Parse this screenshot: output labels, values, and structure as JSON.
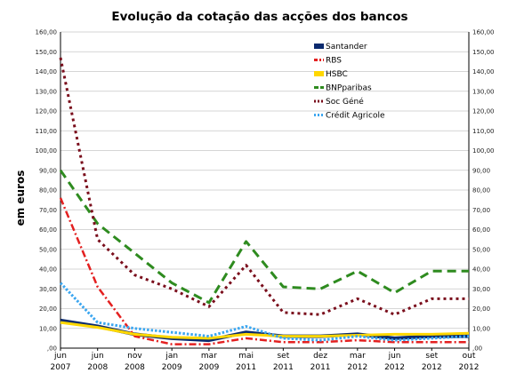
{
  "chart_data": {
    "type": "line",
    "title": "Evolução da cotação das acções dos bancos",
    "ylabel": "em euros",
    "xlabel": "",
    "ylim": [
      0,
      160
    ],
    "yticks": [
      0,
      10,
      20,
      30,
      40,
      50,
      60,
      70,
      80,
      90,
      100,
      110,
      120,
      130,
      140,
      150,
      160
    ],
    "ytick_labels": [
      ",00",
      "10,00",
      "20,00",
      "30,00",
      "40,00",
      "50,00",
      "60,00",
      "70,00",
      "80,00",
      "90,00",
      "100,00",
      "110,00",
      "120,00",
      "130,00",
      "140,00",
      "150,00",
      "160,00"
    ],
    "categories": [
      [
        "jun",
        "2007"
      ],
      [
        "jun",
        "2008"
      ],
      [
        "nov",
        "2008"
      ],
      [
        "jan",
        "2009"
      ],
      [
        "mar",
        "2009"
      ],
      [
        "mai",
        "2011"
      ],
      [
        "set",
        "2011"
      ],
      [
        "dez",
        "2011"
      ],
      [
        "mar",
        "2012"
      ],
      [
        "jun",
        "2012"
      ],
      [
        "set",
        "2012"
      ],
      [
        "out",
        "2012"
      ]
    ],
    "grid": true,
    "legend_position": "top-right",
    "series": [
      {
        "name": "Santander",
        "color": "#0a2a6e",
        "dash": "solid",
        "width": 4,
        "values": [
          14,
          11,
          7,
          5,
          4,
          8,
          6,
          6,
          7,
          5,
          6,
          6
        ]
      },
      {
        "name": "RBS",
        "color": "#e32020",
        "dash": "dashdot",
        "width": 2.5,
        "values": [
          76,
          31,
          6,
          2,
          2,
          5,
          3,
          3,
          4,
          3,
          3,
          3
        ]
      },
      {
        "name": "HSBC",
        "color": "#ffd700",
        "dash": "solid",
        "width": 3,
        "values": [
          13,
          10.5,
          7,
          5.5,
          5,
          7,
          6,
          6,
          6.5,
          7,
          7,
          7.5
        ]
      },
      {
        "name": "BNPparibas",
        "color": "#2e8b1f",
        "dash": "dash",
        "width": 3,
        "values": [
          90,
          63,
          48,
          33,
          23,
          54,
          31,
          30,
          39,
          28,
          39,
          39
        ]
      },
      {
        "name": "Soc Géné",
        "color": "#7a0e1c",
        "dash": "dot",
        "width": 3,
        "values": [
          147,
          55,
          37,
          30,
          21,
          42,
          18,
          17,
          25,
          17,
          25,
          25
        ]
      },
      {
        "name": "Crédit Agricole",
        "color": "#3ba6f0",
        "dash": "dotfine",
        "width": 3,
        "values": [
          33,
          13,
          10,
          8,
          6,
          11,
          5,
          4,
          6,
          4,
          5,
          6
        ]
      }
    ]
  }
}
